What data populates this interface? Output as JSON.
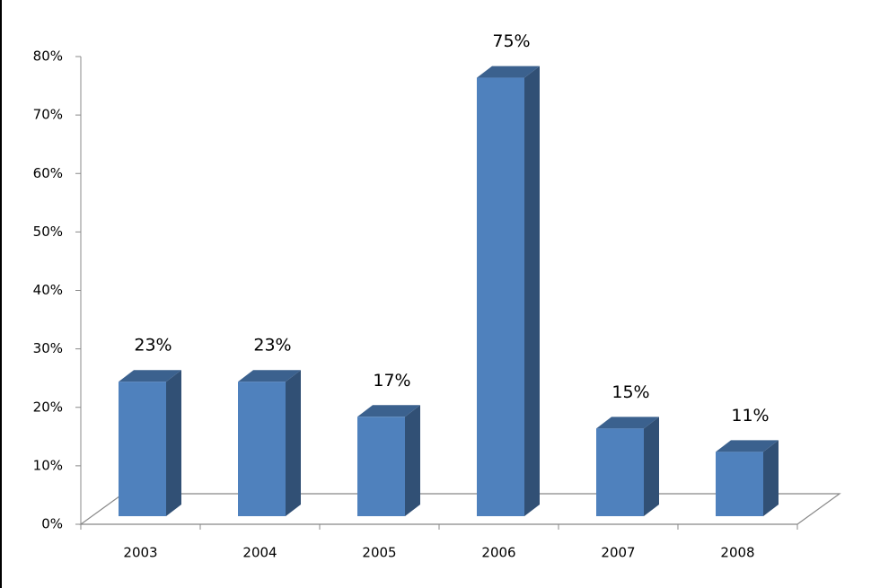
{
  "chart_data": {
    "type": "bar3d",
    "categories": [
      "2003",
      "2004",
      "2005",
      "2006",
      "2007",
      "2008"
    ],
    "values": [
      23,
      23,
      17,
      75,
      15,
      11
    ],
    "value_labels": [
      "23%",
      "23%",
      "17%",
      "75%",
      "15%",
      "11%"
    ],
    "color": "#4f81bd",
    "ylim": [
      0,
      80
    ],
    "yticks": [
      {
        "value": 0,
        "label": "0%"
      },
      {
        "value": 10,
        "label": "10%"
      },
      {
        "value": 20,
        "label": "20%"
      },
      {
        "value": 30,
        "label": "30%"
      },
      {
        "value": 40,
        "label": "40%"
      },
      {
        "value": 50,
        "label": "50%"
      },
      {
        "value": 60,
        "label": "60%"
      },
      {
        "value": 70,
        "label": "70%"
      },
      {
        "value": 80,
        "label": "80%"
      }
    ]
  }
}
